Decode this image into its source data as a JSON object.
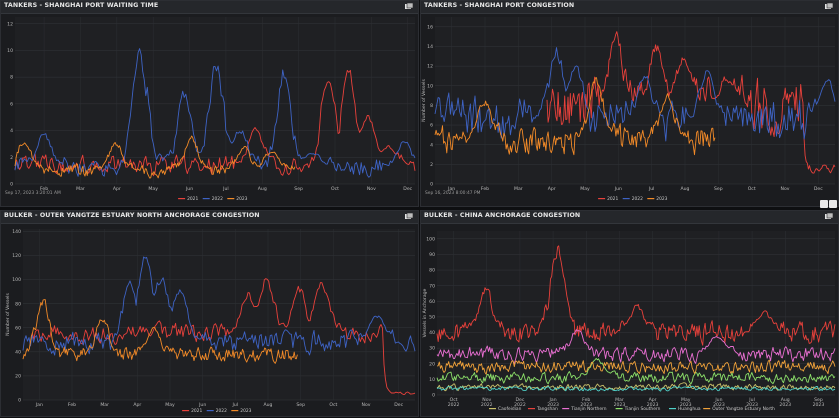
{
  "panels": [
    {
      "title": "TANKERS - SHANGHAI PORT WAITING TIME",
      "timestamp": "Sep 17, 2023 3:20:01 AM"
    },
    {
      "title": "TANKERS - SHANGHAI PORT CONGESTION",
      "timestamp": "Sep 16, 2023 8:00:47 PM"
    },
    {
      "title": "BULKER - OUTER YANGTZE ESTUARY NORTH ANCHORAGE CONGESTION",
      "timestamp": ""
    },
    {
      "title": "BULKER - CHINA ANCHORAGE CONGESTION",
      "timestamp": ""
    }
  ],
  "chart_data": [
    {
      "type": "line",
      "title": "TANKERS - SHANGHAI PORT WAITING TIME",
      "xlabel": "",
      "ylabel": "",
      "x_ticks": [
        "Feb",
        "Mar",
        "Apr",
        "May",
        "Jun",
        "Jul",
        "Aug",
        "Sep",
        "Oct",
        "Nov",
        "Dec"
      ],
      "y_ticks": [
        0,
        2,
        4,
        6,
        8,
        10,
        12
      ],
      "ylim": [
        0,
        12.5
      ],
      "grid": true,
      "legend_position": "bottom",
      "series": [
        {
          "name": "2021",
          "color": "#e8413b",
          "peaks": [
            [
              0.6,
              4.5
            ],
            [
              0.78,
              9.2
            ],
            [
              0.83,
              9.8
            ],
            [
              0.88,
              5.5
            ],
            [
              0.93,
              3.0
            ]
          ],
          "base": 1.4,
          "noise": 1.1
        },
        {
          "name": "2022",
          "color": "#3e63c4",
          "peaks": [
            [
              0.07,
              4.2
            ],
            [
              0.31,
              11.6
            ],
            [
              0.42,
              7.8
            ],
            [
              0.5,
              10.0
            ],
            [
              0.56,
              4.5
            ],
            [
              0.67,
              9.6
            ],
            [
              0.74,
              2.5
            ],
            [
              0.97,
              3.5
            ]
          ],
          "base": 1.3,
          "noise": 1.1
        },
        {
          "name": "2023",
          "color": "#f28a28",
          "peaks": [
            [
              0.02,
              3.5
            ],
            [
              0.25,
              3.3
            ],
            [
              0.44,
              3.8
            ],
            [
              0.57,
              3.0
            ],
            [
              0.64,
              2.8
            ]
          ],
          "base": 1.0,
          "noise": 0.7,
          "end": 0.7
        }
      ]
    },
    {
      "type": "line",
      "title": "TANKERS - SHANGHAI PORT CONGESTION",
      "xlabel": "",
      "ylabel": "Number of Vessels",
      "x_ticks": [
        "Jan",
        "Feb",
        "Mar",
        "Apr",
        "May",
        "Jun",
        "Jul",
        "Aug",
        "Sep",
        "Oct",
        "Nov",
        "Dec"
      ],
      "y_ticks": [
        0,
        2,
        4,
        6,
        8,
        10,
        12,
        14,
        16
      ],
      "ylim": [
        0,
        17
      ],
      "grid": true,
      "legend_position": "bottom",
      "series": [
        {
          "name": "2021",
          "color": "#e8413b",
          "peaks": [
            [
              0.45,
              16.5
            ],
            [
              0.55,
              15.0
            ],
            [
              0.62,
              13.5
            ],
            [
              0.73,
              11.0
            ]
          ],
          "base": 8.0,
          "noise": 4.0,
          "start": 0.28,
          "tail": 1.0
        },
        {
          "name": "2022",
          "color": "#3e63c4",
          "peaks": [
            [
              0.3,
              15.0
            ],
            [
              0.35,
              13.0
            ],
            [
              0.52,
              12.0
            ],
            [
              0.68,
              12.5
            ],
            [
              0.98,
              11.0
            ]
          ],
          "base": 6.5,
          "noise": 3.5
        },
        {
          "name": "2023",
          "color": "#f28a28",
          "peaks": [
            [
              0.12,
              9.0
            ],
            [
              0.4,
              11.5
            ],
            [
              0.58,
              9.5
            ]
          ],
          "base": 4.5,
          "noise": 2.2,
          "end": 0.7
        }
      ]
    },
    {
      "type": "line",
      "title": "BULKER - OUTER YANGTZE ESTUARY NORTH ANCHORAGE CONGESTION",
      "xlabel": "",
      "ylabel": "Number of Vessels",
      "x_ticks": [
        "Jan",
        "Feb",
        "Mar",
        "Apr",
        "May",
        "Jun",
        "Jul",
        "Aug",
        "Sep",
        "Oct",
        "Nov",
        "Dec"
      ],
      "y_ticks": [
        0,
        20,
        40,
        60,
        80,
        100,
        120,
        140
      ],
      "ylim": [
        0,
        142
      ],
      "grid": true,
      "legend_position": "bottom",
      "series": [
        {
          "name": "2021",
          "color": "#e8413b",
          "peaks": [
            [
              0.57,
              95
            ],
            [
              0.62,
              110
            ],
            [
              0.7,
              100
            ],
            [
              0.76,
              105
            ]
          ],
          "base": 55,
          "noise": 12,
          "start": 0.02,
          "tail": 4
        },
        {
          "name": "2022",
          "color": "#3e63c4",
          "peaks": [
            [
              0.27,
              105
            ],
            [
              0.31,
              132
            ],
            [
              0.35,
              110
            ],
            [
              0.4,
              100
            ],
            [
              0.9,
              75
            ]
          ],
          "base": 48,
          "noise": 14
        },
        {
          "name": "2023",
          "color": "#f28a28",
          "peaks": [
            [
              0.05,
              88
            ],
            [
              0.2,
              72
            ],
            [
              0.33,
              62
            ]
          ],
          "base": 38,
          "noise": 9,
          "end": 0.7
        }
      ]
    },
    {
      "type": "line",
      "title": "BULKER - CHINA ANCHORAGE CONGESTION",
      "xlabel": "",
      "ylabel": "Vessels in Anchorage",
      "x_ticks": [
        "Oct 2022",
        "Nov 2022",
        "Dec 2022",
        "Jan 2023",
        "Feb 2023",
        "Mar 2023",
        "Apr 2023",
        "May 2023",
        "Jun 2023",
        "Jul 2023",
        "Aug 2023",
        "Sep 2023"
      ],
      "y_ticks": [
        0,
        10,
        20,
        30,
        40,
        50,
        60,
        70,
        80,
        90,
        100
      ],
      "ylim": [
        0,
        105
      ],
      "grid": true,
      "legend_position": "bottom",
      "series": [
        {
          "name": "Caofeidian",
          "color": "#c9c06a",
          "peaks": [],
          "base": 5,
          "noise": 3
        },
        {
          "name": "Tangshan",
          "color": "#e8413b",
          "peaks": [
            [
              0.12,
              72
            ],
            [
              0.3,
              102
            ],
            [
              0.5,
              60
            ],
            [
              0.82,
              55
            ]
          ],
          "base": 40,
          "noise": 10
        },
        {
          "name": "Tianjin Northern",
          "color": "#e96fd2",
          "peaks": [
            [
              0.35,
              45
            ],
            [
              0.7,
              40
            ]
          ],
          "base": 26,
          "noise": 7
        },
        {
          "name": "Tianjin Southern",
          "color": "#8ce06a",
          "peaks": [
            [
              0.4,
              25
            ]
          ],
          "base": 11,
          "noise": 5
        },
        {
          "name": "Huanghua",
          "color": "#4fd1c9",
          "peaks": [],
          "base": 4,
          "noise": 2
        },
        {
          "name": "Outer Yangtze Estuary North",
          "color": "#f0a23a",
          "peaks": [],
          "base": 18,
          "noise": 6
        }
      ]
    }
  ]
}
